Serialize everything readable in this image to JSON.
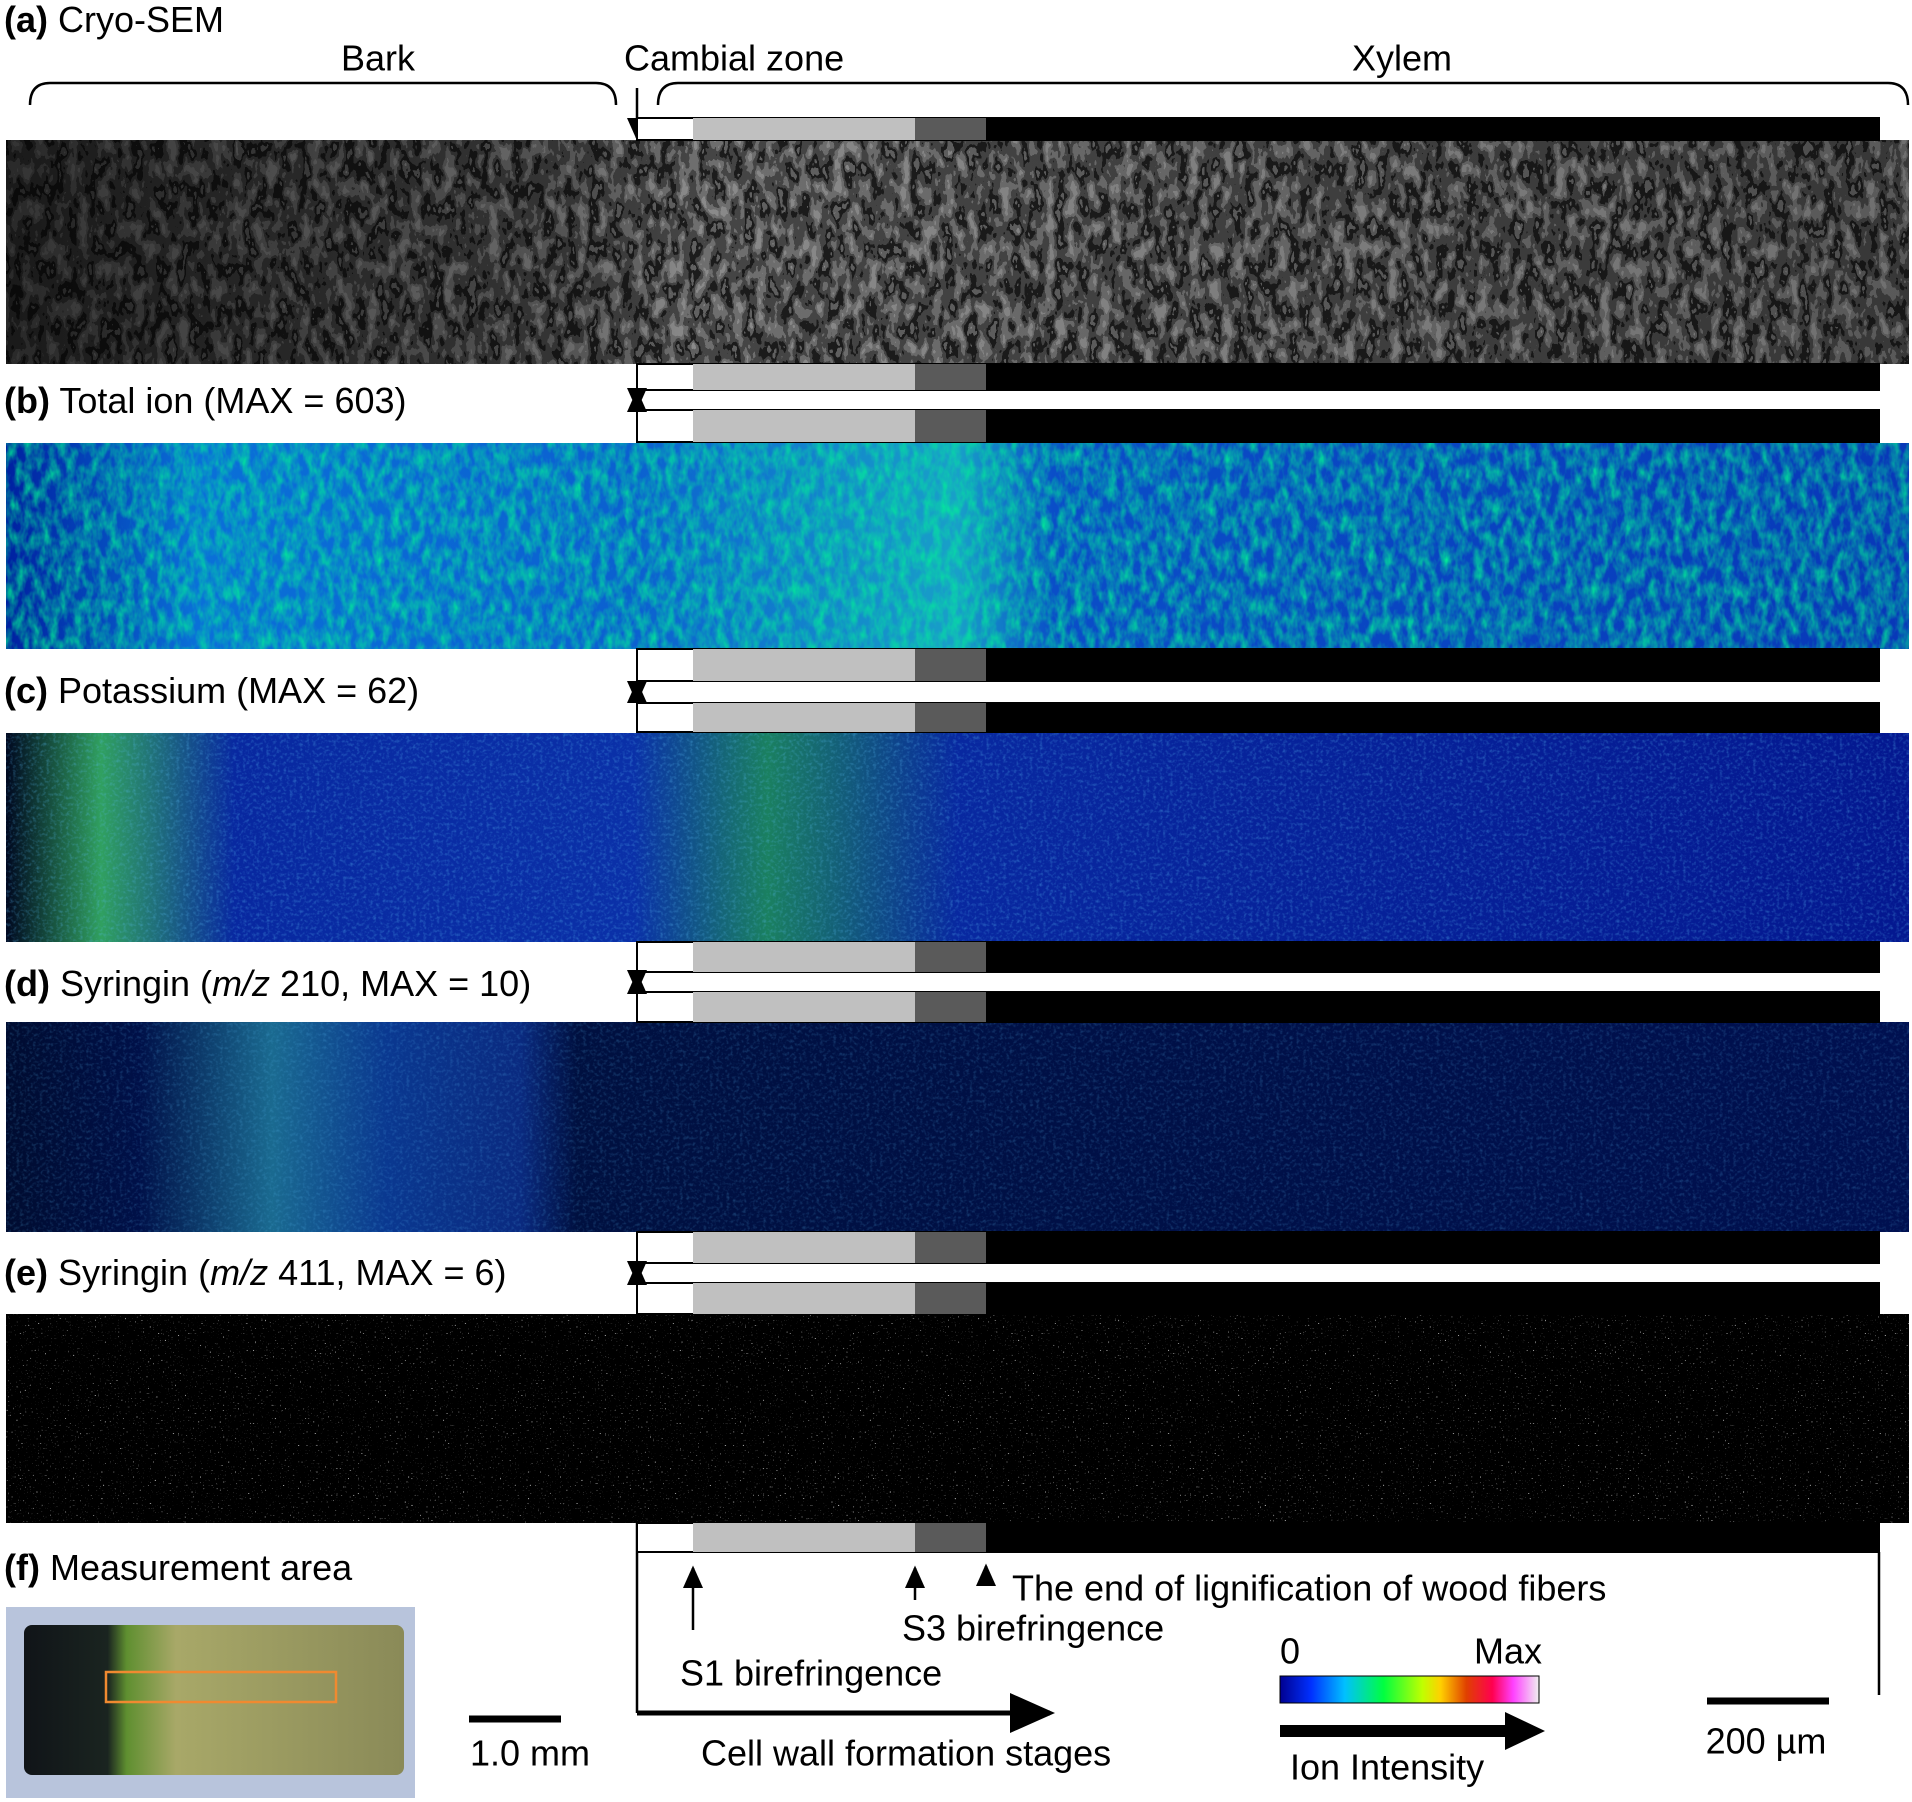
{
  "panels": [
    {
      "label": "(a)",
      "title": [
        {
          "text": "Cryo-SEM"
        }
      ]
    },
    {
      "label": "(b)",
      "title": [
        {
          "text": "Total ion (MAX = 603)"
        }
      ]
    },
    {
      "label": "(c)",
      "title": [
        {
          "text": "Potassium (MAX = 62)"
        }
      ]
    },
    {
      "label": "(d)",
      "title": [
        {
          "text": "Syringin ("
        },
        {
          "text": "m/z",
          "italic": true
        },
        {
          "text": " 210, MAX = 10)"
        }
      ]
    },
    {
      "label": "(e)",
      "title": [
        {
          "text": "Syringin ("
        },
        {
          "text": "m/z",
          "italic": true
        },
        {
          "text": " 411, MAX = 6)"
        }
      ]
    },
    {
      "label": "(f)",
      "title": [
        {
          "text": "Measurement area"
        }
      ]
    }
  ],
  "regions": [
    "Bark",
    "Cambial zone",
    "Xylem"
  ],
  "markers": [
    "S1 birefringence",
    "S3 birefringence",
    "The end of lignification of wood fibers"
  ],
  "arrow_label": "Cell wall formation stages",
  "colorbar": {
    "min": "0",
    "max": "Max",
    "label": "Ion Intensity"
  },
  "scale_bars": [
    "1.0 mm",
    "200 µm"
  ]
}
